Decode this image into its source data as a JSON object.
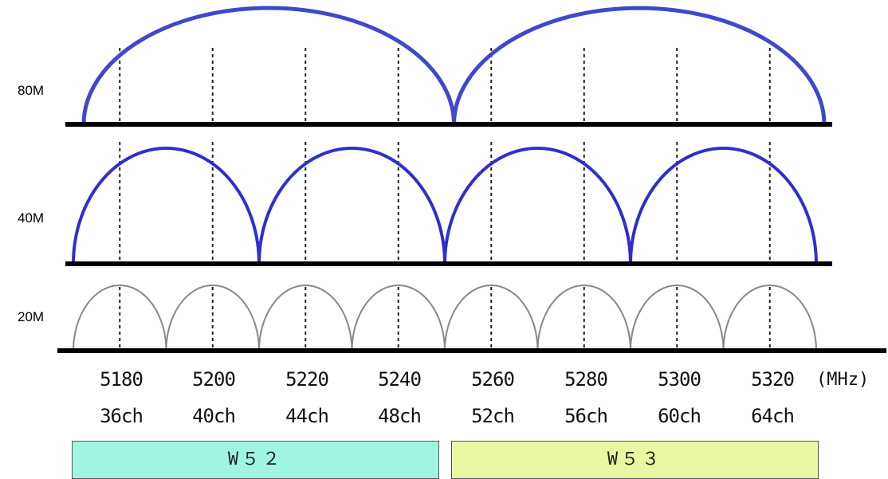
{
  "rows": [
    {
      "label": "80M",
      "spans": [
        [
          0,
          4
        ],
        [
          4,
          8
        ]
      ],
      "color": "#3f48cc"
    },
    {
      "label": "40M",
      "spans": [
        [
          0,
          2
        ],
        [
          2,
          4
        ],
        [
          4,
          6
        ],
        [
          6,
          8
        ]
      ],
      "color": "#2e2ed0"
    },
    {
      "label": "20M",
      "spans": [
        [
          0,
          1
        ],
        [
          1,
          2
        ],
        [
          2,
          3
        ],
        [
          3,
          4
        ],
        [
          4,
          5
        ],
        [
          5,
          6
        ],
        [
          6,
          7
        ],
        [
          7,
          8
        ]
      ],
      "color": "#888888"
    }
  ],
  "channels": [
    {
      "freq": "5180",
      "ch": "36ch"
    },
    {
      "freq": "5200",
      "ch": "40ch"
    },
    {
      "freq": "5220",
      "ch": "44ch"
    },
    {
      "freq": "5240",
      "ch": "48ch"
    },
    {
      "freq": "5260",
      "ch": "52ch"
    },
    {
      "freq": "5280",
      "ch": "56ch"
    },
    {
      "freq": "5300",
      "ch": "60ch"
    },
    {
      "freq": "5320",
      "ch": "64ch"
    }
  ],
  "unit": "(MHz)",
  "bands": [
    {
      "label": "W５２",
      "color": "#9ff5e0",
      "start": 0,
      "end": 4
    },
    {
      "label": "W５３",
      "color": "#e9f7a2",
      "start": 4,
      "end": 8
    }
  ],
  "colors": {
    "baseline": "#000000",
    "divider": "#222222"
  }
}
